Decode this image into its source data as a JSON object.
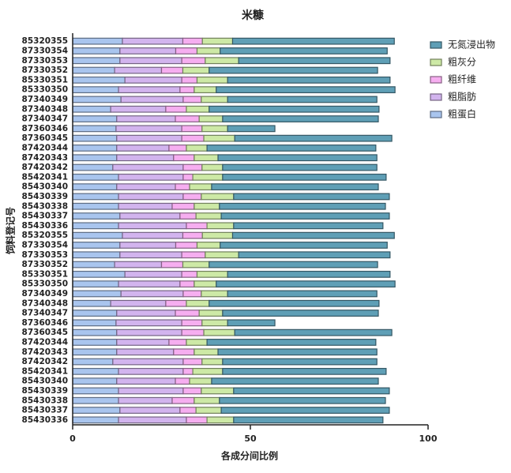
{
  "chart_data": {
    "type": "stacked-barh",
    "title": "米糠",
    "xlabel": "各成分间比例",
    "ylabel": "饲料登记号",
    "categories": [
      "85320355",
      "87330354",
      "87330353",
      "87330352",
      "85330351",
      "85330350",
      "87340349",
      "87340348",
      "87340347",
      "87360346",
      "87360345",
      "87420344",
      "87420343",
      "87420342",
      "85420341",
      "85430340",
      "85430339",
      "85430338",
      "85430337",
      "85430336",
      "85320355",
      "87330354",
      "87330353",
      "87330352",
      "85330351",
      "85330350",
      "87340349",
      "87340348",
      "87340347",
      "87360346",
      "87360345",
      "87420344",
      "87420343",
      "87420342",
      "85420341",
      "85430340",
      "85430339",
      "85430338",
      "85430337",
      "85430336"
    ],
    "series": [
      {
        "name": "粗蛋白",
        "color": "#a9c5ee",
        "values": [
          14,
          13.3,
          13.3,
          11.8,
          14.7,
          12.9,
          13.6,
          10.7,
          12.4,
          12.2,
          12.4,
          12.4,
          12.4,
          11.3,
          12.9,
          12.4,
          12.9,
          12.9,
          13.3,
          12.9,
          14,
          13.3,
          13.3,
          11.8,
          14.7,
          12.9,
          13.6,
          10.7,
          12.4,
          12.2,
          12.4,
          12.4,
          12.4,
          11.3,
          12.9,
          12.4,
          12.9,
          12.9,
          13.3,
          12.9
        ]
      },
      {
        "name": "粗脂肪",
        "color": "#d2b4ee",
        "values": [
          17,
          15.7,
          17.4,
          13.2,
          16,
          17.3,
          17.5,
          15.5,
          16.5,
          18.5,
          18.3,
          14.7,
          16,
          19.8,
          18.2,
          16.5,
          18.2,
          15.1,
          16.9,
          19.1,
          17,
          15.7,
          17.4,
          13.2,
          16,
          17.3,
          17.5,
          15.5,
          16.5,
          18.5,
          18.3,
          14.7,
          16,
          19.8,
          18.2,
          16.5,
          18.2,
          15.1,
          16.9,
          19.1
        ]
      },
      {
        "name": "粗纤维",
        "color": "#f6aef0",
        "values": [
          5.5,
          6,
          6.6,
          6,
          4.3,
          4,
          5.1,
          5.8,
          6.7,
          5.7,
          6.2,
          4.9,
          5.8,
          5.3,
          2.7,
          4,
          5.1,
          6.2,
          4.5,
          5.8,
          5.5,
          6,
          6.6,
          6,
          4.3,
          4,
          5.1,
          5.8,
          6.7,
          5.7,
          6.2,
          4.9,
          5.8,
          5.3,
          2.7,
          4,
          5.1,
          6.2,
          4.5,
          5.8
        ]
      },
      {
        "name": "粗灰分",
        "color": "#cde9a6",
        "values": [
          8.5,
          6.5,
          9.4,
          7.4,
          8.6,
          6.2,
          7.4,
          6.4,
          6.6,
          7.2,
          8.7,
          5.8,
          6.7,
          5.8,
          8.4,
          6.2,
          9.1,
          7.1,
          7.1,
          7.5,
          8.5,
          6.5,
          9.4,
          7.4,
          8.6,
          6.2,
          7.4,
          6.4,
          6.6,
          7.2,
          8.7,
          5.8,
          6.7,
          5.8,
          8.4,
          6.2,
          9.1,
          7.1,
          7.1,
          7.5
        ]
      },
      {
        "name": "无氮浸出物",
        "color": "#5f9fb6",
        "values": [
          45.5,
          47,
          42.6,
          47.4,
          45.7,
          50.3,
          42,
          47.8,
          43.8,
          13.3,
          44.2,
          47.5,
          44.7,
          43.4,
          46,
          46.9,
          43.8,
          46.7,
          47.3,
          42,
          45.5,
          47,
          42.6,
          47.4,
          45.7,
          50.3,
          42,
          47.8,
          43.8,
          13.3,
          44.2,
          47.5,
          44.7,
          43.4,
          46,
          46.9,
          43.8,
          46.7,
          47.3,
          42
        ]
      }
    ],
    "xlim": [
      0,
      100
    ],
    "xticks": [
      0,
      50,
      100
    ]
  }
}
